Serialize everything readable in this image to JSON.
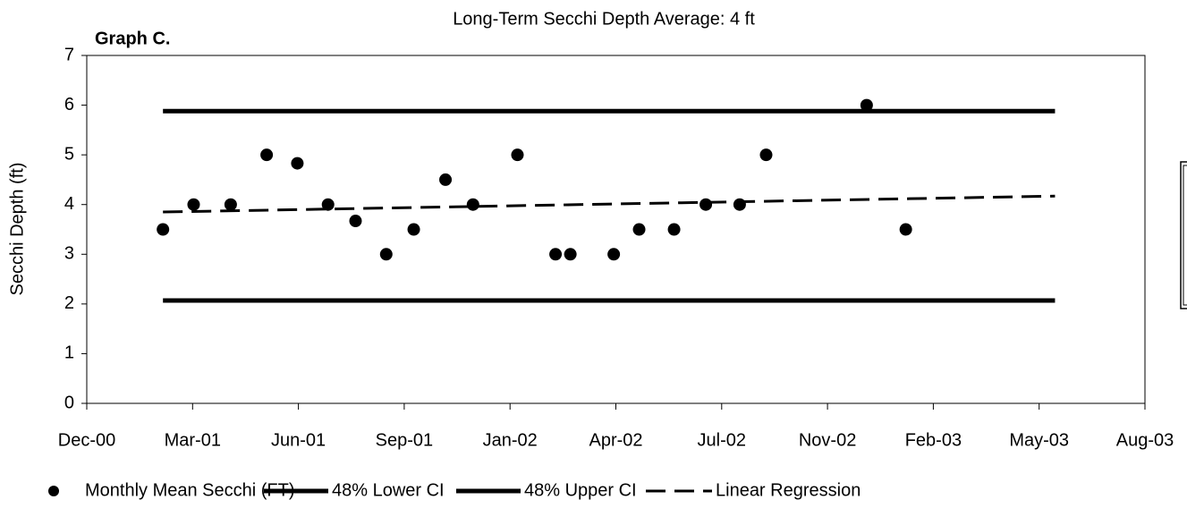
{
  "chart_data": {
    "type": "scatter",
    "title": "Long-Term Secchi Depth Average:  4 ft",
    "subtitle": "Graph C.",
    "y_label": "Secchi Depth (ft)",
    "xlim": [
      0,
      10
    ],
    "xticks": [
      {
        "value": 0,
        "label": "Dec-00"
      },
      {
        "value": 1,
        "label": "Mar-01"
      },
      {
        "value": 2,
        "label": "Jun-01"
      },
      {
        "value": 3,
        "label": "Sep-01"
      },
      {
        "value": 4,
        "label": "Jan-02"
      },
      {
        "value": 5,
        "label": "Apr-02"
      },
      {
        "value": 6,
        "label": "Jul-02"
      },
      {
        "value": 7,
        "label": "Nov-02"
      },
      {
        "value": 8,
        "label": "Feb-03"
      },
      {
        "value": 9,
        "label": "May-03"
      },
      {
        "value": 10,
        "label": "Aug-03"
      }
    ],
    "ylim": [
      0,
      7
    ],
    "yticks": [
      0,
      1,
      2,
      3,
      4,
      5,
      6,
      7
    ],
    "series": [
      {
        "name": "Monthly Mean Secchi (FT)",
        "color": "#000000",
        "style": "marker",
        "x": [
          0.72,
          1.01,
          1.36,
          1.7,
          1.99,
          2.28,
          2.54,
          2.83,
          3.09,
          3.39,
          3.65,
          4.07,
          4.43,
          4.57,
          4.98,
          5.22,
          5.55,
          5.85,
          6.17,
          6.42,
          7.37,
          7.74
        ],
        "values": [
          3.5,
          4,
          4,
          5,
          4.83,
          4,
          3.67,
          3,
          3.5,
          4.5,
          4,
          5,
          3,
          3,
          3,
          3.5,
          3.5,
          4,
          4,
          5,
          6,
          3.5
        ]
      },
      {
        "name": "48% Lower CI",
        "color": "#000000",
        "style": "solid",
        "x": [
          0.72,
          9.15
        ],
        "values": [
          2.07,
          2.07
        ]
      },
      {
        "name": "48% Upper CI",
        "color": "#000000",
        "style": "solid",
        "x": [
          0.72,
          9.15
        ],
        "values": [
          5.88,
          5.88
        ]
      },
      {
        "name": "Linear Regression",
        "color": "#000000",
        "style": "dashed",
        "x": [
          0.72,
          9.15
        ],
        "values": [
          3.85,
          4.17
        ]
      }
    ]
  }
}
